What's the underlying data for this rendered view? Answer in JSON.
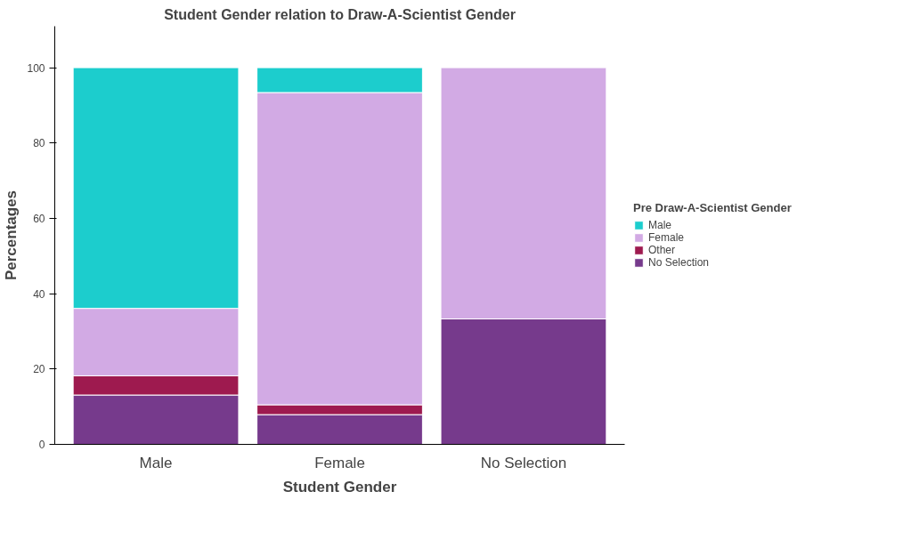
{
  "chart_data": {
    "type": "bar",
    "title": "Student Gender relation to Draw-A-Scientist Gender",
    "xlabel": "Student Gender",
    "ylabel": "Percentages",
    "legend_title": "Pre Draw-A-Scientist Gender",
    "categories": [
      "Male",
      "Female",
      "No Selection"
    ],
    "stacked": true,
    "series": [
      {
        "name": "No Selection",
        "color": "#763a8c",
        "values": [
          13.1,
          7.9,
          33.3
        ]
      },
      {
        "name": "Other",
        "color": "#9e1a4f",
        "values": [
          5.1,
          2.6,
          0
        ]
      },
      {
        "name": "Female",
        "color": "#d2aae4",
        "values": [
          17.9,
          82.9,
          66.7
        ]
      },
      {
        "name": "Male",
        "color": "#1ccdcd",
        "values": [
          63.9,
          6.6,
          0
        ]
      }
    ],
    "ylim": [
      0,
      111
    ],
    "yticks": [
      0,
      20,
      40,
      60,
      80,
      100
    ],
    "grid": false,
    "legend": "right"
  }
}
